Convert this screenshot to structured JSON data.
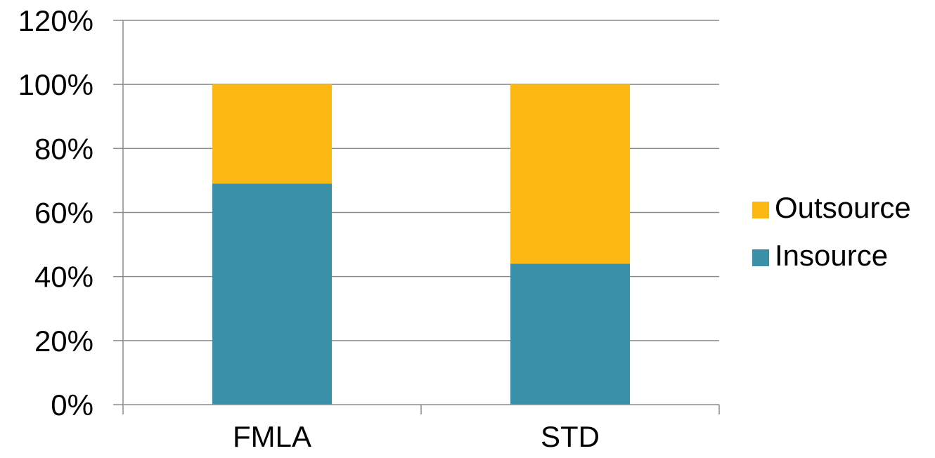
{
  "chart_data": {
    "type": "bar",
    "stacked": true,
    "categories": [
      "FMLA",
      "STD"
    ],
    "series": [
      {
        "name": "Insource",
        "values": [
          69,
          44
        ],
        "color": "#3A90A8"
      },
      {
        "name": "Outsource",
        "values": [
          31,
          56
        ],
        "color": "#FDB813"
      }
    ],
    "y_ticks": [
      "0%",
      "20%",
      "40%",
      "60%",
      "80%",
      "100%",
      "120%"
    ],
    "ylim": [
      0,
      120
    ],
    "y_unit": "%",
    "grid": true,
    "legend_position": "right",
    "legend_order": [
      "Outsource",
      "Insource"
    ],
    "title": "",
    "xlabel": "",
    "ylabel": ""
  }
}
